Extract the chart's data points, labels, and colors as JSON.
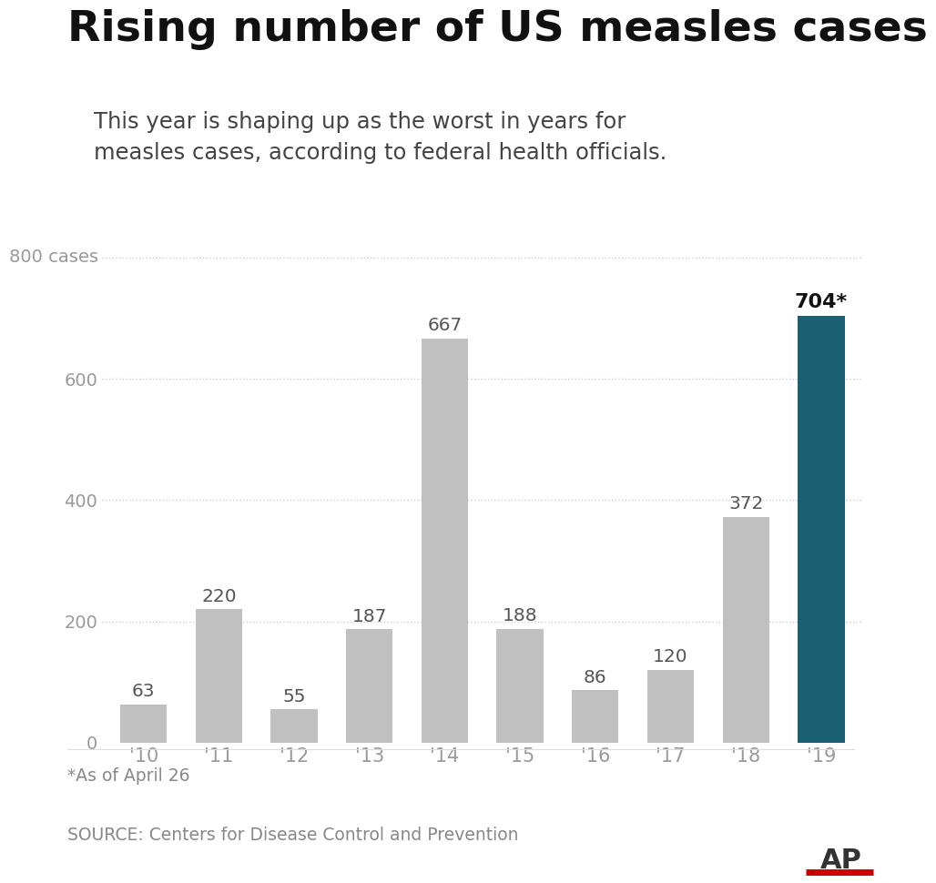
{
  "title": "Rising number of US measles cases",
  "subtitle": "This year is shaping up as the worst in years for\nmeasles cases, according to federal health officials.",
  "years": [
    "'10",
    "'11",
    "'12",
    "'13",
    "'14",
    "'15",
    "'16",
    "'17",
    "'18",
    "'19"
  ],
  "values": [
    63,
    220,
    55,
    187,
    667,
    188,
    86,
    120,
    372,
    704
  ],
  "bar_colors": [
    "#c0c0c0",
    "#c0c0c0",
    "#c0c0c0",
    "#c0c0c0",
    "#c0c0c0",
    "#c0c0c0",
    "#c0c0c0",
    "#c0c0c0",
    "#c0c0c0",
    "#1b5f72"
  ],
  "highlight_index": 9,
  "highlight_label": "704*",
  "ylim": [
    0,
    850
  ],
  "yticks": [
    0,
    200,
    400,
    600
  ],
  "grid_levels": [
    200,
    400,
    600,
    800
  ],
  "ylabel_text": "800 cases",
  "grid_color": "#cccccc",
  "footnote": "*As of April 26",
  "source": "SOURCE: Centers for Disease Control and Prevention",
  "bg_color": "#ffffff",
  "title_color": "#111111",
  "subtitle_color": "#444444",
  "axis_label_color": "#999999",
  "bar_label_color_default": "#555555",
  "bar_label_color_highlight": "#111111",
  "footnote_color": "#888888",
  "source_color": "#888888",
  "ap_color": "#333333",
  "ap_line_color": "#cc0000"
}
